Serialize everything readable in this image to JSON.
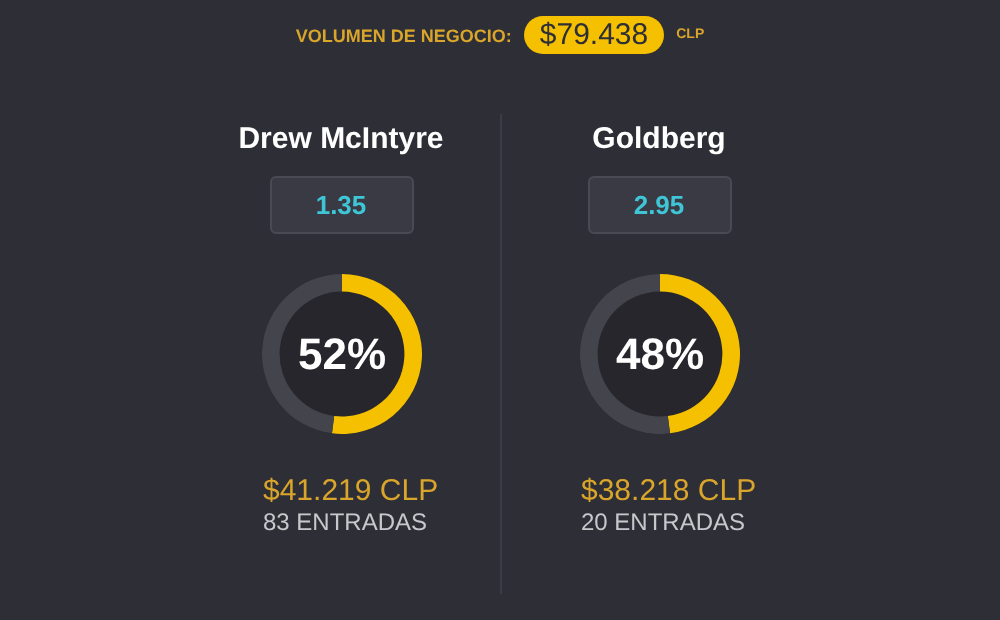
{
  "chart_data": [
    {
      "type": "other",
      "title": "VOLUMEN DE NEGOCIO:",
      "subtitle": "$79.438",
      "annotations": [
        "CLP"
      ]
    },
    {
      "type": "donut",
      "title": "Drew McIntyre",
      "categories": [
        null,
        null
      ],
      "values": [
        52,
        48
      ],
      "colors": [
        "#f5c000",
        "#44444c"
      ],
      "value_labels": [
        "52%",
        null
      ],
      "annotations": [
        "1.35",
        "$41.219 CLP",
        "83 ENTRADAS"
      ]
    },
    {
      "type": "donut",
      "title": "Goldberg",
      "categories": [
        null,
        null
      ],
      "values": [
        48,
        52
      ],
      "colors": [
        "#f5c000",
        "#44444c"
      ],
      "value_labels": [
        "48%",
        null
      ],
      "annotations": [
        "2.95",
        "$38.218 CLP",
        "20 ENTRADAS"
      ]
    }
  ]
}
